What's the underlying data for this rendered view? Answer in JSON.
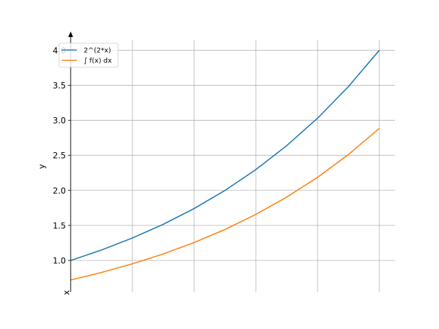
{
  "chart_data": {
    "type": "line",
    "title": "",
    "xlabel": "x",
    "ylabel": "y",
    "xlim": [
      0,
      1
    ],
    "ylim": [
      0.55,
      4.15
    ],
    "y_ticks": [
      1.0,
      1.5,
      2.0,
      2.5,
      3.0,
      3.5,
      4.0
    ],
    "y_tick_labels": [
      "1.0",
      "1.5",
      "2.0",
      "2.5",
      "3.0",
      "3.5",
      "4.0"
    ],
    "x_grid_lines": [
      0,
      0.2,
      0.4,
      0.6,
      0.8,
      1.0
    ],
    "x_tick_labels_visible": false,
    "grid": true,
    "legend_position": "top-left",
    "x": [
      0,
      0.1,
      0.2,
      0.3,
      0.4,
      0.5,
      0.6,
      0.7,
      0.8,
      0.9,
      1.0
    ],
    "series": [
      {
        "name": "2^(2*x)",
        "color": "#1f77b4",
        "values": [
          1.0,
          1.149,
          1.32,
          1.516,
          1.741,
          2.0,
          2.297,
          2.639,
          3.031,
          3.482,
          4.0
        ]
      },
      {
        "name": "∫ f(x) dx",
        "color": "#ff7f0e",
        "values": [
          0.721,
          0.829,
          0.952,
          1.093,
          1.256,
          1.443,
          1.657,
          1.904,
          2.187,
          2.512,
          2.885
        ]
      }
    ]
  }
}
